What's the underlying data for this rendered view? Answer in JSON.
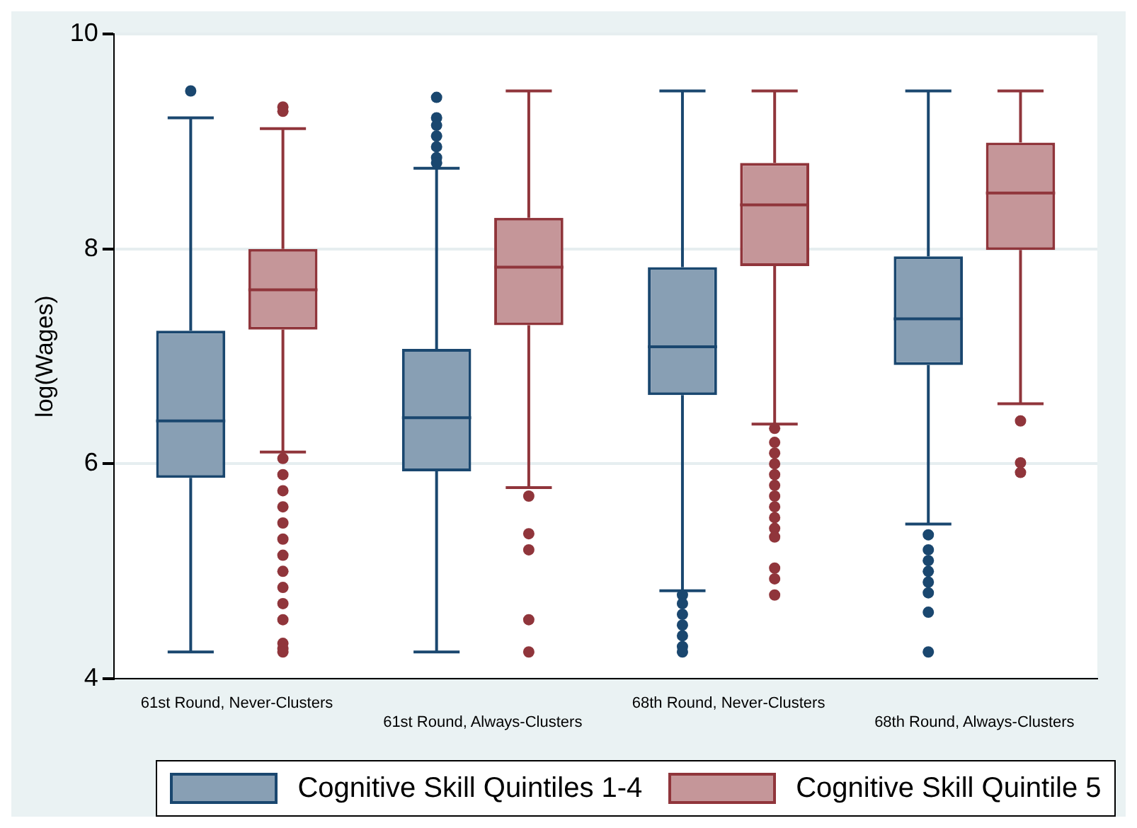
{
  "chart_data": {
    "type": "box",
    "ylabel": "log(Wages)",
    "categories": [
      "61st Round, Never-Clusters",
      "61st Round, Always-Clusters",
      "68th Round, Never-Clusters",
      "68th Round, Always-Clusters"
    ],
    "ylim": [
      4,
      10
    ],
    "yticks": [
      4,
      6,
      8,
      10
    ],
    "grid": "y",
    "legend": "bottom",
    "series": [
      {
        "name": "Cognitive Skill Quintiles 1-4",
        "color": "#1a476f",
        "boxes": [
          {
            "low": 4.25,
            "q1": 5.87,
            "median": 6.4,
            "q3": 7.24,
            "high": 9.22,
            "outliers": [
              9.47
            ]
          },
          {
            "low": 4.25,
            "q1": 5.93,
            "median": 6.43,
            "q3": 7.07,
            "high": 8.75,
            "outliers": [
              9.41,
              9.22,
              9.15,
              9.05,
              8.95,
              8.85,
              8.8
            ]
          },
          {
            "low": 4.82,
            "q1": 6.64,
            "median": 7.09,
            "q3": 7.83,
            "high": 9.47,
            "outliers": [
              4.78,
              4.7,
              4.6,
              4.5,
              4.4,
              4.3,
              4.25
            ]
          },
          {
            "low": 5.44,
            "q1": 6.92,
            "median": 7.35,
            "q3": 7.93,
            "high": 9.47,
            "outliers": [
              5.34,
              5.2,
              5.1,
              5.0,
              4.9,
              4.8,
              4.62,
              4.25
            ]
          }
        ]
      },
      {
        "name": "Cognitive Skill Quintile 5",
        "color": "#90353b",
        "boxes": [
          {
            "low": 6.11,
            "q1": 7.25,
            "median": 7.62,
            "q3": 8.0,
            "high": 9.12,
            "outliers": [
              9.32,
              9.28,
              6.05,
              5.9,
              5.75,
              5.6,
              5.45,
              5.3,
              5.15,
              5.0,
              4.85,
              4.7,
              4.55,
              4.33,
              4.28,
              4.25
            ]
          },
          {
            "low": 5.78,
            "q1": 7.29,
            "median": 7.83,
            "q3": 8.29,
            "high": 9.47,
            "outliers": [
              5.7,
              5.35,
              5.2,
              4.55,
              4.25
            ]
          },
          {
            "low": 6.37,
            "q1": 7.84,
            "median": 8.41,
            "q3": 8.8,
            "high": 9.47,
            "outliers": [
              6.33,
              6.2,
              6.1,
              6.0,
              5.9,
              5.8,
              5.7,
              5.6,
              5.5,
              5.4,
              5.32,
              5.03,
              4.93,
              4.78
            ]
          },
          {
            "low": 6.56,
            "q1": 7.99,
            "median": 8.52,
            "q3": 8.99,
            "high": 9.47,
            "outliers": [
              6.4,
              6.01,
              5.92
            ]
          }
        ]
      }
    ]
  }
}
